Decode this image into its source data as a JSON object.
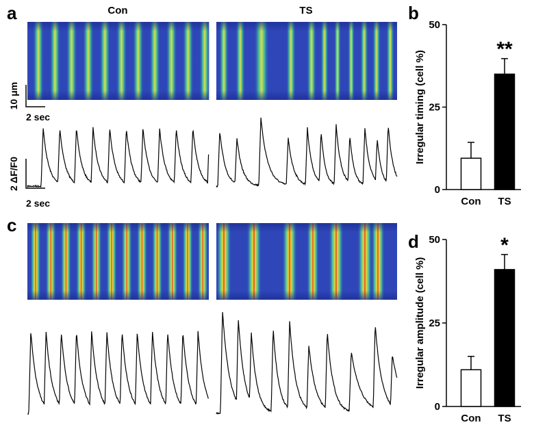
{
  "panels": {
    "a": "a",
    "b": "b",
    "c": "c",
    "d": "d"
  },
  "columns": {
    "con": "Con",
    "ts": "TS"
  },
  "scale_bars": {
    "space": "10 μm",
    "time_scan": "2 sec",
    "signal": "2 ΔF/F0",
    "time_trace": "2 sec"
  },
  "chart_data": [
    {
      "type": "bar",
      "ylabel": "Irregular timing (cell %)",
      "categories": [
        "Con",
        "TS"
      ],
      "values": [
        9.5,
        35
      ],
      "errors": [
        4.8,
        4.7
      ],
      "colors": [
        "#ffffff",
        "#000000"
      ],
      "ylim": [
        0,
        50
      ],
      "yticks": [
        0,
        25,
        50
      ],
      "annotation": "**"
    },
    {
      "type": "bar",
      "ylabel": "Irregular amplitude (cell %)",
      "categories": [
        "Con",
        "TS"
      ],
      "values": [
        11,
        41
      ],
      "errors": [
        4,
        4.5
      ],
      "colors": [
        "#ffffff",
        "#000000"
      ],
      "ylim": [
        0,
        50
      ],
      "yticks": [
        0,
        25,
        50
      ],
      "annotation": "*"
    }
  ]
}
